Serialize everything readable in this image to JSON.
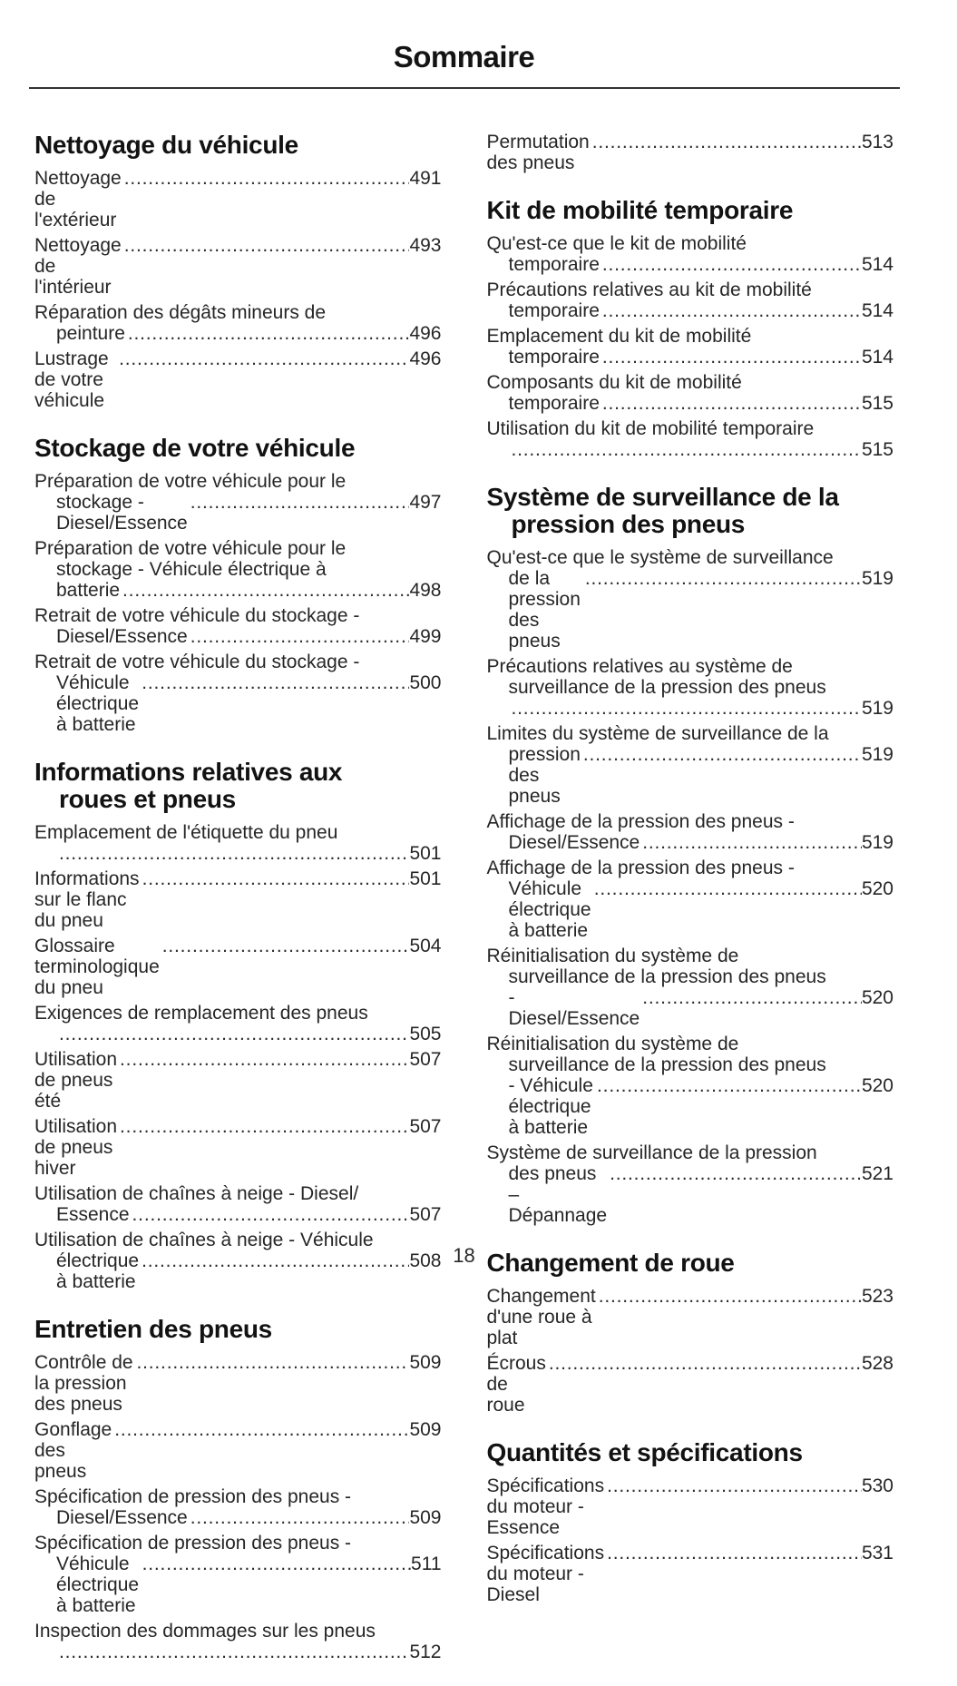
{
  "title": "Sommaire",
  "page_number": "18",
  "colors": {
    "text": "#242424",
    "heading": "#121212",
    "rule": "#333333"
  },
  "columns": [
    {
      "sections": [
        {
          "heading_lines": [
            "Nettoyage du véhicule"
          ],
          "entries": [
            {
              "lines": [
                "Nettoyage de l'extérieur"
              ],
              "page": "491"
            },
            {
              "lines": [
                "Nettoyage de l'intérieur"
              ],
              "page": "493"
            },
            {
              "lines": [
                "Réparation des dégâts mineurs de",
                "peinture "
              ],
              "page": "496"
            },
            {
              "lines": [
                "Lustrage de votre véhicule"
              ],
              "page": "496"
            }
          ]
        },
        {
          "heading_lines": [
            "Stockage de votre véhicule"
          ],
          "entries": [
            {
              "lines": [
                "Préparation de votre véhicule pour le",
                "stockage - Diesel/Essence"
              ],
              "page": "497"
            },
            {
              "lines": [
                "Préparation de votre véhicule pour le",
                "stockage - Véhicule électrique à",
                "batterie "
              ],
              "page": "498"
            },
            {
              "lines": [
                "Retrait de votre véhicule du stockage -",
                "Diesel/Essence "
              ],
              "page": "499"
            },
            {
              "lines": [
                "Retrait de votre véhicule du stockage -",
                "Véhicule électrique à batterie"
              ],
              "page": "500"
            }
          ]
        },
        {
          "heading_lines": [
            "Informations relatives aux",
            "roues et pneus"
          ],
          "entries": [
            {
              "lines": [
                "Emplacement de l'étiquette du pneu",
                ""
              ],
              "page": "501"
            },
            {
              "lines": [
                "Informations sur le flanc du pneu"
              ],
              "page": "501"
            },
            {
              "lines": [
                "Glossaire terminologique du pneu"
              ],
              "page": "504"
            },
            {
              "lines": [
                "Exigences de remplacement des pneus",
                ""
              ],
              "page": "505"
            },
            {
              "lines": [
                "Utilisation de pneus été"
              ],
              "page": "507"
            },
            {
              "lines": [
                "Utilisation de pneus hiver"
              ],
              "page": "507"
            },
            {
              "lines": [
                "Utilisation de chaînes à neige - Diesel/",
                "Essence "
              ],
              "page": "507"
            },
            {
              "lines": [
                "Utilisation de chaînes à neige - Véhicule",
                "électrique à batterie"
              ],
              "page": "508"
            }
          ]
        },
        {
          "heading_lines": [
            "Entretien des pneus"
          ],
          "entries": [
            {
              "lines": [
                "Contrôle de la pression des pneus"
              ],
              "page": "509"
            },
            {
              "lines": [
                "Gonflage des pneus"
              ],
              "page": "509"
            },
            {
              "lines": [
                "Spécification de pression des pneus -",
                "Diesel/Essence "
              ],
              "page": "509"
            },
            {
              "lines": [
                "Spécification de pression des pneus -",
                "Véhicule électrique à batterie"
              ],
              "page": "511"
            },
            {
              "lines": [
                "Inspection des dommages sur les pneus",
                ""
              ],
              "page": "512"
            }
          ]
        }
      ]
    },
    {
      "sections": [
        {
          "heading_lines": null,
          "entries": [
            {
              "lines": [
                "Permutation des pneus"
              ],
              "page": "513"
            }
          ]
        },
        {
          "heading_lines": [
            "Kit de mobilité temporaire"
          ],
          "entries": [
            {
              "lines": [
                "Qu'est-ce que le kit de mobilité",
                "temporaire "
              ],
              "page": "514"
            },
            {
              "lines": [
                "Précautions relatives au kit de mobilité",
                "temporaire "
              ],
              "page": "514"
            },
            {
              "lines": [
                "Emplacement du kit de mobilité",
                "temporaire "
              ],
              "page": "514"
            },
            {
              "lines": [
                "Composants du kit de mobilité",
                "temporaire "
              ],
              "page": "515"
            },
            {
              "lines": [
                "Utilisation du kit de mobilité temporaire",
                ""
              ],
              "page": "515"
            }
          ]
        },
        {
          "heading_lines": [
            "Système de surveillance de la",
            "pression des pneus"
          ],
          "entries": [
            {
              "lines": [
                "Qu'est-ce que le système de surveillance",
                "de la pression des pneus"
              ],
              "page": "519"
            },
            {
              "lines": [
                "Précautions relatives au système de",
                "surveillance de la pression des pneus",
                ""
              ],
              "page": "519"
            },
            {
              "lines": [
                "Limites du système de surveillance de la",
                "pression des pneus"
              ],
              "page": "519"
            },
            {
              "lines": [
                "Affichage de la pression des pneus -",
                "Diesel/Essence "
              ],
              "page": "519"
            },
            {
              "lines": [
                "Affichage de la pression des pneus -",
                "Véhicule électrique à batterie"
              ],
              "page": "520"
            },
            {
              "lines": [
                "Réinitialisation du système de",
                "surveillance de la pression des pneus",
                "- Diesel/Essence "
              ],
              "page": "520"
            },
            {
              "lines": [
                "Réinitialisation du système de",
                "surveillance de la pression des pneus",
                "- Véhicule électrique à batterie"
              ],
              "page": "520"
            },
            {
              "lines": [
                "Système de surveillance de la pression",
                "des pneus – Dépannage"
              ],
              "page": "521"
            }
          ]
        },
        {
          "heading_lines": [
            "Changement de roue"
          ],
          "entries": [
            {
              "lines": [
                "Changement d'une roue à plat"
              ],
              "page": "523"
            },
            {
              "lines": [
                "Écrous de roue"
              ],
              "page": "528"
            }
          ]
        },
        {
          "heading_lines": [
            "Quantités et spécifications"
          ],
          "entries": [
            {
              "lines": [
                "Spécifications du moteur - Essence"
              ],
              "page": "530"
            },
            {
              "lines": [
                "Spécifications du moteur - Diesel"
              ],
              "page": "531"
            }
          ]
        }
      ]
    }
  ]
}
